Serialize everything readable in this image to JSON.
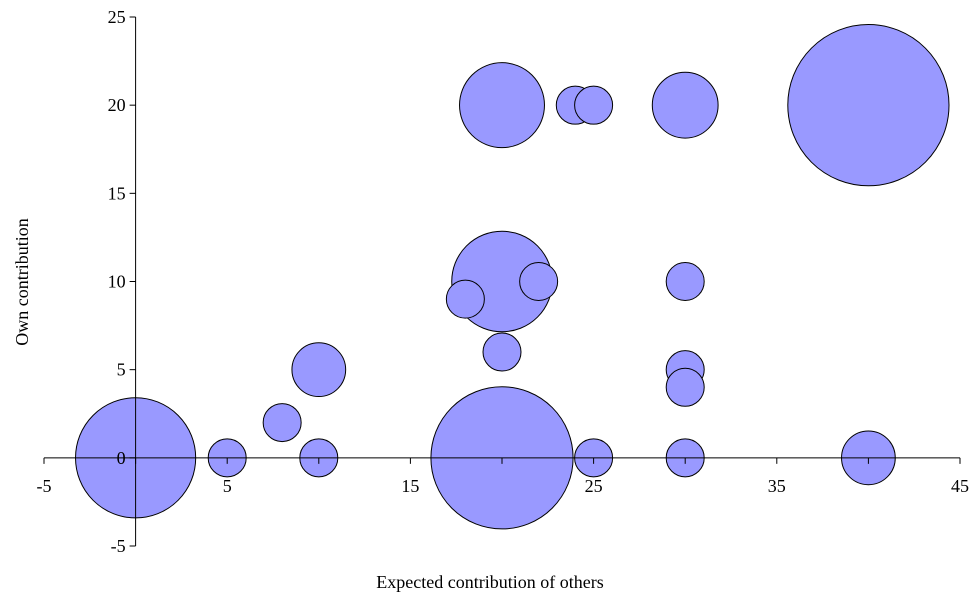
{
  "chart_data": {
    "type": "scatter",
    "subtype": "bubble",
    "title": "",
    "xlabel": "Expected contribution of others",
    "ylabel": "Own contribution",
    "xlim": [
      -5,
      45
    ],
    "ylim": [
      -5,
      25
    ],
    "x_ticks": [
      -5,
      5,
      15,
      25,
      35,
      45
    ],
    "y_ticks": [
      -5,
      0,
      5,
      10,
      15,
      20,
      25
    ],
    "grid": false,
    "legend": "none",
    "bubble_color": "#9999ff",
    "bubble_edge": "#000000",
    "points": [
      {
        "x": 0,
        "y": 0,
        "size": 10
      },
      {
        "x": 5,
        "y": 0,
        "size": 1
      },
      {
        "x": 8,
        "y": 2,
        "size": 1
      },
      {
        "x": 10,
        "y": 0,
        "size": 1
      },
      {
        "x": 10,
        "y": 5,
        "size": 2
      },
      {
        "x": 18,
        "y": 9,
        "size": 1
      },
      {
        "x": 20,
        "y": 0,
        "size": 14
      },
      {
        "x": 20,
        "y": 6,
        "size": 1
      },
      {
        "x": 20,
        "y": 10,
        "size": 7
      },
      {
        "x": 20,
        "y": 20,
        "size": 5
      },
      {
        "x": 22,
        "y": 10,
        "size": 1
      },
      {
        "x": 24,
        "y": 20,
        "size": 1
      },
      {
        "x": 25,
        "y": 20,
        "size": 1
      },
      {
        "x": 25,
        "y": 0,
        "size": 1
      },
      {
        "x": 30,
        "y": 20,
        "size": 3
      },
      {
        "x": 30,
        "y": 10,
        "size": 1
      },
      {
        "x": 30,
        "y": 5,
        "size": 1
      },
      {
        "x": 30,
        "y": 4,
        "size": 1
      },
      {
        "x": 30,
        "y": 0,
        "size": 1
      },
      {
        "x": 40,
        "y": 20,
        "size": 18
      },
      {
        "x": 40,
        "y": 0,
        "size": 2
      }
    ]
  }
}
